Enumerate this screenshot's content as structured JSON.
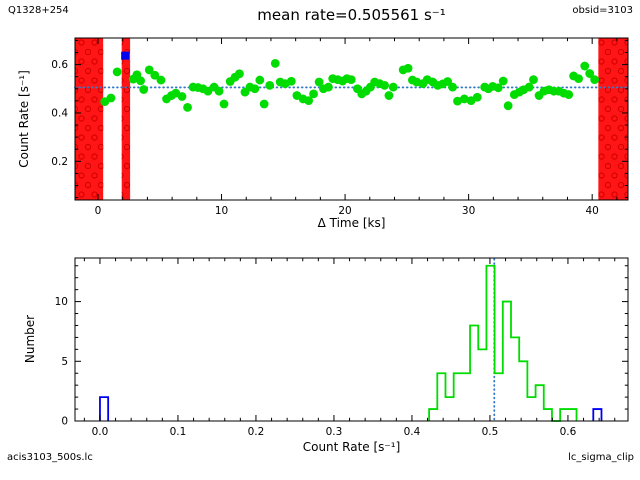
{
  "header": {
    "target": "Q1328+254",
    "obsid": "obsid=3103"
  },
  "title": "mean rate=0.505561 s⁻¹",
  "footer": {
    "left": "acis3103_500s.lc",
    "right": "lc_sigma_clip"
  },
  "colors": {
    "good": "#00dc00",
    "clipped": "#0000f0",
    "excluded_band": "#ff1515",
    "hatch": "#d40000",
    "mean_line": "#3579c8",
    "axis": "#000000"
  },
  "chart_data": [
    {
      "type": "scatter",
      "name": "lightcurve",
      "xlabel": "Δ Time [ks]",
      "ylabel": "Count Rate [s⁻¹]",
      "xlim": [
        -1.86,
        42.9
      ],
      "ylim": [
        0.04,
        0.71
      ],
      "xticks": [
        0,
        10,
        20,
        30,
        40
      ],
      "xtick_labels": [
        "0",
        "10",
        "20",
        "30",
        "40"
      ],
      "xminor_step": 2,
      "yticks": [
        0.2,
        0.4,
        0.6
      ],
      "ytick_labels": [
        "0.2",
        "0.4",
        "0.6"
      ],
      "yminor_step": 0.05,
      "mean_rate": 0.505561,
      "excluded_intervals_ks": [
        [
          -1.86,
          0.42
        ],
        [
          1.92,
          2.6
        ],
        [
          40.5,
          42.9
        ]
      ],
      "clipped_points": [
        [
          2.2,
          0.637
        ]
      ],
      "good_points": [
        [
          0.55,
          0.447
        ],
        [
          1.05,
          0.462
        ],
        [
          1.55,
          0.57
        ],
        [
          2.85,
          0.54
        ],
        [
          3.15,
          0.558
        ],
        [
          3.45,
          0.533
        ],
        [
          3.7,
          0.497
        ],
        [
          4.15,
          0.578
        ],
        [
          4.6,
          0.556
        ],
        [
          5.1,
          0.536
        ],
        [
          5.55,
          0.458
        ],
        [
          5.95,
          0.472
        ],
        [
          6.3,
          0.482
        ],
        [
          6.8,
          0.468
        ],
        [
          7.25,
          0.423
        ],
        [
          7.7,
          0.507
        ],
        [
          8.1,
          0.505
        ],
        [
          8.5,
          0.5
        ],
        [
          8.9,
          0.49
        ],
        [
          9.4,
          0.507
        ],
        [
          9.8,
          0.49
        ],
        [
          10.2,
          0.437
        ],
        [
          10.7,
          0.53
        ],
        [
          11.1,
          0.548
        ],
        [
          11.45,
          0.562
        ],
        [
          11.9,
          0.486
        ],
        [
          12.3,
          0.507
        ],
        [
          12.7,
          0.5
        ],
        [
          13.1,
          0.536
        ],
        [
          13.45,
          0.437
        ],
        [
          13.9,
          0.514
        ],
        [
          14.35,
          0.605
        ],
        [
          14.75,
          0.528
        ],
        [
          15.15,
          0.521
        ],
        [
          15.65,
          0.531
        ],
        [
          16.1,
          0.472
        ],
        [
          16.6,
          0.458
        ],
        [
          17.05,
          0.451
        ],
        [
          17.45,
          0.479
        ],
        [
          17.9,
          0.528
        ],
        [
          18.25,
          0.5
        ],
        [
          18.65,
          0.507
        ],
        [
          19.0,
          0.542
        ],
        [
          19.4,
          0.538
        ],
        [
          19.8,
          0.532
        ],
        [
          20.15,
          0.542
        ],
        [
          20.5,
          0.538
        ],
        [
          21.0,
          0.5
        ],
        [
          21.35,
          0.479
        ],
        [
          21.7,
          0.49
        ],
        [
          22.05,
          0.507
        ],
        [
          22.4,
          0.528
        ],
        [
          22.8,
          0.521
        ],
        [
          23.2,
          0.514
        ],
        [
          23.55,
          0.472
        ],
        [
          23.9,
          0.507
        ],
        [
          24.7,
          0.578
        ],
        [
          25.1,
          0.585
        ],
        [
          25.45,
          0.536
        ],
        [
          25.8,
          0.528
        ],
        [
          26.3,
          0.521
        ],
        [
          26.65,
          0.538
        ],
        [
          27.1,
          0.528
        ],
        [
          27.5,
          0.514
        ],
        [
          27.9,
          0.52
        ],
        [
          28.3,
          0.53
        ],
        [
          28.7,
          0.507
        ],
        [
          29.1,
          0.449
        ],
        [
          29.65,
          0.458
        ],
        [
          30.2,
          0.451
        ],
        [
          30.7,
          0.465
        ],
        [
          31.3,
          0.507
        ],
        [
          31.6,
          0.5
        ],
        [
          31.95,
          0.51
        ],
        [
          32.4,
          0.504
        ],
        [
          32.8,
          0.532
        ],
        [
          33.2,
          0.43
        ],
        [
          33.7,
          0.476
        ],
        [
          34.1,
          0.486
        ],
        [
          34.45,
          0.496
        ],
        [
          34.9,
          0.507
        ],
        [
          35.25,
          0.538
        ],
        [
          35.7,
          0.472
        ],
        [
          36.1,
          0.49
        ],
        [
          36.5,
          0.496
        ],
        [
          36.9,
          0.49
        ],
        [
          37.3,
          0.49
        ],
        [
          37.7,
          0.482
        ],
        [
          38.1,
          0.476
        ],
        [
          38.5,
          0.553
        ],
        [
          38.9,
          0.542
        ],
        [
          39.4,
          0.594
        ],
        [
          39.8,
          0.563
        ],
        [
          40.2,
          0.538
        ]
      ]
    },
    {
      "type": "bar",
      "subtype": "step-histogram",
      "name": "rate-distribution",
      "xlabel": "Count Rate [s⁻¹]",
      "ylabel": "Number",
      "xlim": [
        -0.032,
        0.677
      ],
      "ylim": [
        0,
        13.65
      ],
      "xticks": [
        0.0,
        0.1,
        0.2,
        0.3,
        0.4,
        0.5,
        0.6
      ],
      "xtick_labels": [
        "0.0",
        "0.1",
        "0.2",
        "0.3",
        "0.4",
        "0.5",
        "0.6"
      ],
      "xminor_step": 0.02,
      "yticks": [
        0,
        5,
        10
      ],
      "ytick_labels": [
        "0",
        "5",
        "10"
      ],
      "yminor_step": 1,
      "mean_rate": 0.505561,
      "good_bins": {
        "start": 0.422,
        "width": 0.0105,
        "heights": [
          1,
          4,
          2,
          4,
          4,
          8,
          6,
          13,
          4,
          10,
          7,
          5,
          2,
          3,
          1,
          0,
          1,
          1
        ]
      },
      "clipped_bins": [
        {
          "start": 0.0,
          "width": 0.0105,
          "height": 2
        },
        {
          "start": 0.6325,
          "width": 0.0105,
          "height": 1
        }
      ]
    }
  ]
}
